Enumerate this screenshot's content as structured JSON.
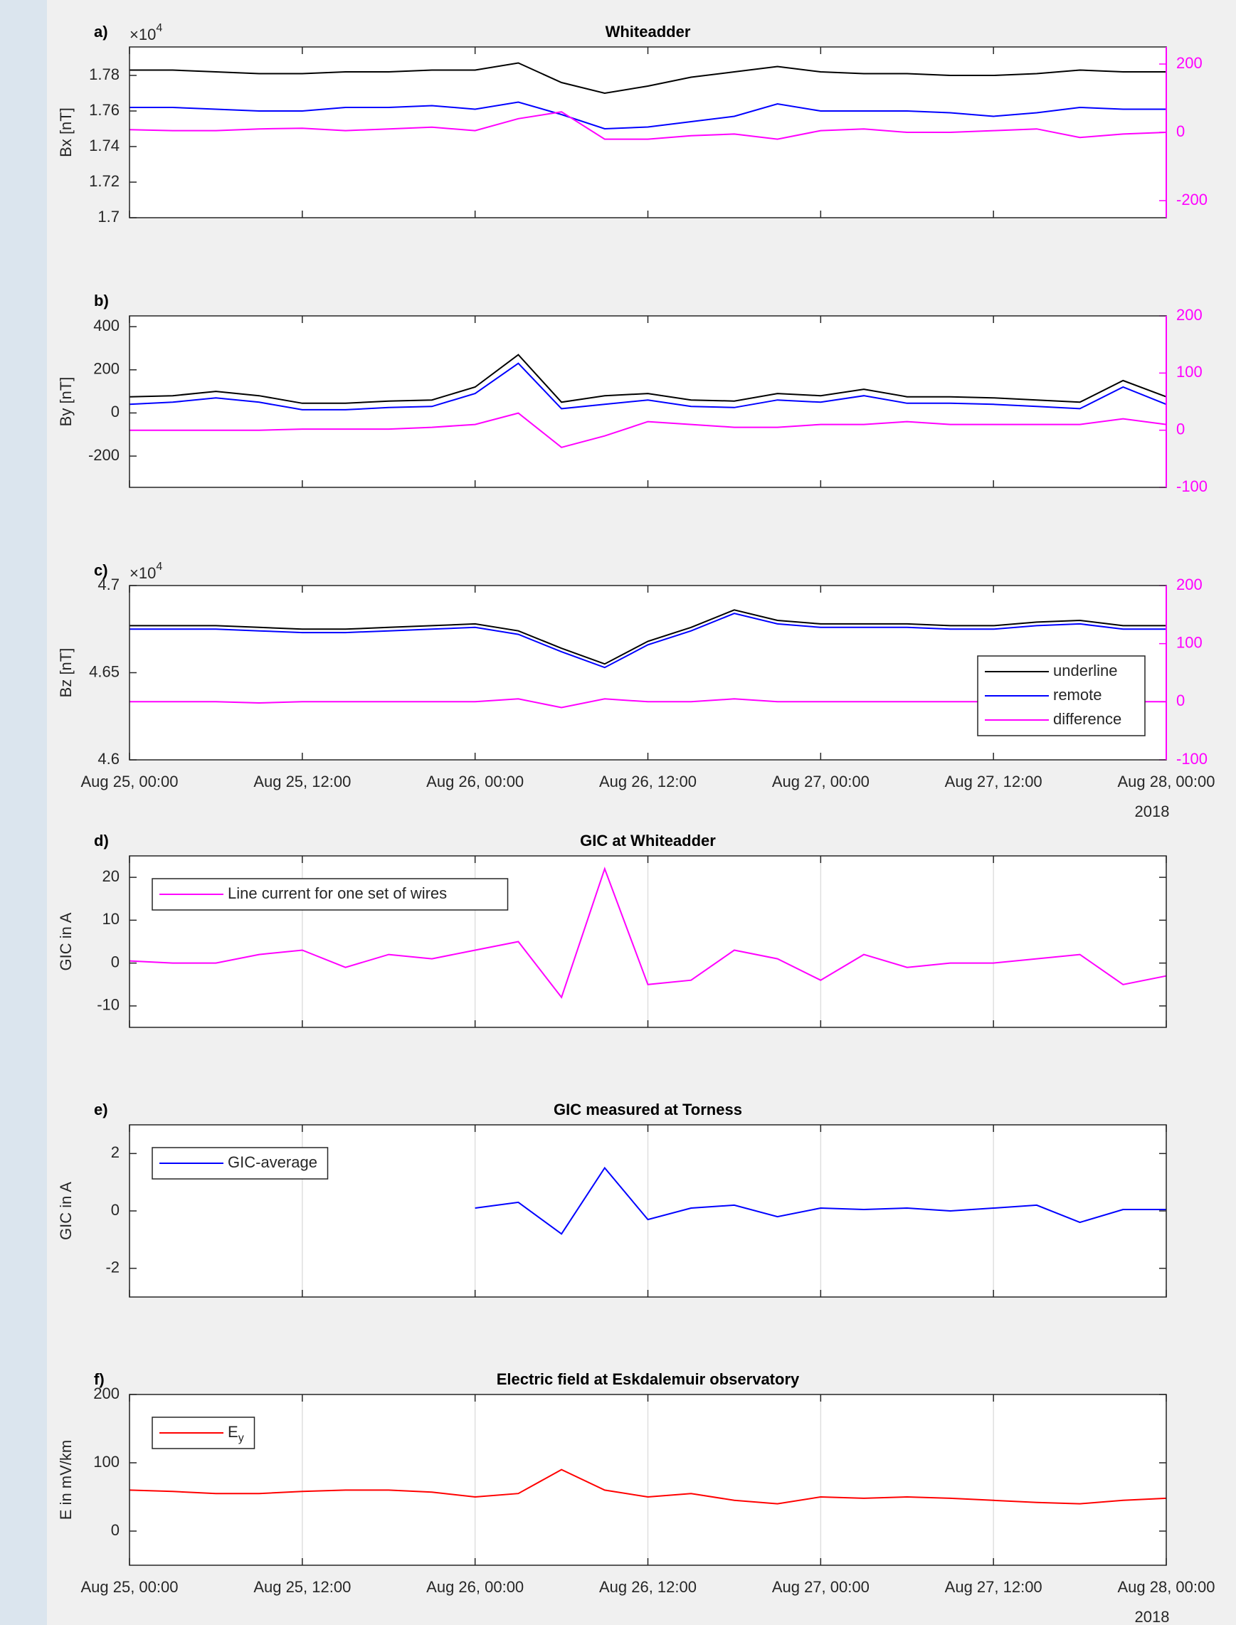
{
  "chart_data": [
    {
      "type": "line",
      "panel_label": "a)",
      "title": "Whiteadder",
      "y_label": "Bx [nT]",
      "y_multiplier": "×10",
      "y_multiplier_exp": "4",
      "x": [
        "2018-08-25T00:00",
        "2018-08-25T03:00",
        "2018-08-25T06:00",
        "2018-08-25T09:00",
        "2018-08-25T12:00",
        "2018-08-25T15:00",
        "2018-08-25T18:00",
        "2018-08-25T21:00",
        "2018-08-26T00:00",
        "2018-08-26T03:00",
        "2018-08-26T06:00",
        "2018-08-26T09:00",
        "2018-08-26T12:00",
        "2018-08-26T15:00",
        "2018-08-26T18:00",
        "2018-08-26T21:00",
        "2018-08-27T00:00",
        "2018-08-27T03:00",
        "2018-08-27T06:00",
        "2018-08-27T09:00",
        "2018-08-27T12:00",
        "2018-08-27T15:00",
        "2018-08-27T18:00",
        "2018-08-27T21:00",
        "2018-08-28T00:00"
      ],
      "xlim": [
        "2018-08-25T00:00",
        "2018-08-28T00:00"
      ],
      "xticks": [
        "2018-08-25T00:00",
        "2018-08-25T12:00",
        "2018-08-26T00:00",
        "2018-08-26T12:00",
        "2018-08-27T00:00",
        "2018-08-27T12:00",
        "2018-08-28T00:00"
      ],
      "ylim": [
        1.7,
        1.796
      ],
      "yticks": [
        1.7,
        1.72,
        1.74,
        1.76,
        1.78
      ],
      "y2lim": [
        -250,
        250
      ],
      "y2ticks": [
        -200,
        0,
        200
      ],
      "y2color": "#ff00ff",
      "series": [
        {
          "name": "underline",
          "color": "#000000",
          "values": [
            1.783,
            1.783,
            1.782,
            1.781,
            1.781,
            1.782,
            1.782,
            1.783,
            1.783,
            1.787,
            1.776,
            1.77,
            1.774,
            1.779,
            1.782,
            1.785,
            1.782,
            1.781,
            1.781,
            1.78,
            1.78,
            1.781,
            1.783,
            1.782,
            1.782
          ]
        },
        {
          "name": "remote",
          "color": "#0000ff",
          "values": [
            1.762,
            1.762,
            1.761,
            1.76,
            1.76,
            1.762,
            1.762,
            1.763,
            1.761,
            1.765,
            1.758,
            1.75,
            1.751,
            1.754,
            1.757,
            1.764,
            1.76,
            1.76,
            1.76,
            1.759,
            1.757,
            1.759,
            1.762,
            1.761,
            1.761
          ]
        },
        {
          "name": "difference",
          "color": "#ff00ff",
          "axis": "y2",
          "values": [
            8,
            5,
            5,
            10,
            12,
            5,
            10,
            15,
            5,
            40,
            60,
            -20,
            -20,
            -10,
            -5,
            -20,
            5,
            10,
            0,
            0,
            5,
            10,
            -15,
            -5,
            0
          ]
        }
      ]
    },
    {
      "type": "line",
      "panel_label": "b)",
      "y_label": "By [nT]",
      "x": [
        "2018-08-25T00:00",
        "2018-08-25T03:00",
        "2018-08-25T06:00",
        "2018-08-25T09:00",
        "2018-08-25T12:00",
        "2018-08-25T15:00",
        "2018-08-25T18:00",
        "2018-08-25T21:00",
        "2018-08-26T00:00",
        "2018-08-26T03:00",
        "2018-08-26T06:00",
        "2018-08-26T09:00",
        "2018-08-26T12:00",
        "2018-08-26T15:00",
        "2018-08-26T18:00",
        "2018-08-26T21:00",
        "2018-08-27T00:00",
        "2018-08-27T03:00",
        "2018-08-27T06:00",
        "2018-08-27T09:00",
        "2018-08-27T12:00",
        "2018-08-27T15:00",
        "2018-08-27T18:00",
        "2018-08-27T21:00",
        "2018-08-28T00:00"
      ],
      "xlim": [
        "2018-08-25T00:00",
        "2018-08-28T00:00"
      ],
      "xticks": [
        "2018-08-25T00:00",
        "2018-08-25T12:00",
        "2018-08-26T00:00",
        "2018-08-26T12:00",
        "2018-08-27T00:00",
        "2018-08-27T12:00",
        "2018-08-28T00:00"
      ],
      "ylim": [
        -345,
        450
      ],
      "yticks": [
        -200,
        0,
        200,
        400
      ],
      "y2lim": [
        -100,
        200
      ],
      "y2ticks": [
        -100,
        0,
        100,
        200
      ],
      "y2color": "#ff00ff",
      "series": [
        {
          "name": "underline",
          "color": "#000000",
          "values": [
            75,
            80,
            100,
            80,
            45,
            45,
            55,
            60,
            120,
            270,
            50,
            80,
            90,
            60,
            55,
            90,
            80,
            110,
            75,
            75,
            70,
            60,
            50,
            150,
            75
          ]
        },
        {
          "name": "remote",
          "color": "#0000ff",
          "values": [
            40,
            50,
            70,
            50,
            15,
            15,
            25,
            30,
            90,
            230,
            20,
            40,
            60,
            30,
            25,
            60,
            50,
            80,
            45,
            45,
            40,
            30,
            20,
            120,
            40
          ]
        },
        {
          "name": "difference",
          "color": "#ff00ff",
          "axis": "y2",
          "values": [
            0,
            0,
            0,
            0,
            2,
            2,
            2,
            5,
            10,
            30,
            -30,
            -10,
            15,
            10,
            5,
            5,
            10,
            10,
            15,
            10,
            10,
            10,
            10,
            20,
            10
          ]
        }
      ]
    },
    {
      "type": "line",
      "panel_label": "c)",
      "y_label": "Bz [nT]",
      "y_multiplier": "×10",
      "y_multiplier_exp": "4",
      "x_note": "2018",
      "legend": "lower right",
      "x": [
        "2018-08-25T00:00",
        "2018-08-25T03:00",
        "2018-08-25T06:00",
        "2018-08-25T09:00",
        "2018-08-25T12:00",
        "2018-08-25T15:00",
        "2018-08-25T18:00",
        "2018-08-25T21:00",
        "2018-08-26T00:00",
        "2018-08-26T03:00",
        "2018-08-26T06:00",
        "2018-08-26T09:00",
        "2018-08-26T12:00",
        "2018-08-26T15:00",
        "2018-08-26T18:00",
        "2018-08-26T21:00",
        "2018-08-27T00:00",
        "2018-08-27T03:00",
        "2018-08-27T06:00",
        "2018-08-27T09:00",
        "2018-08-27T12:00",
        "2018-08-27T15:00",
        "2018-08-27T18:00",
        "2018-08-27T21:00",
        "2018-08-28T00:00"
      ],
      "xlim": [
        "2018-08-25T00:00",
        "2018-08-28T00:00"
      ],
      "xticks": [
        {
          "value": "2018-08-25T00:00",
          "label": "Aug 25, 00:00"
        },
        {
          "value": "2018-08-25T12:00",
          "label": "Aug 25, 12:00"
        },
        {
          "value": "2018-08-26T00:00",
          "label": "Aug 26, 00:00"
        },
        {
          "value": "2018-08-26T12:00",
          "label": "Aug 26, 12:00"
        },
        {
          "value": "2018-08-27T00:00",
          "label": "Aug 27, 00:00"
        },
        {
          "value": "2018-08-27T12:00",
          "label": "Aug 27, 12:00"
        },
        {
          "value": "2018-08-28T00:00",
          "label": "Aug 28, 00:00"
        }
      ],
      "ylim": [
        4.6,
        4.7
      ],
      "yticks": [
        4.6,
        4.65,
        4.7
      ],
      "y2lim": [
        -100,
        200
      ],
      "y2ticks": [
        -100,
        0,
        100,
        200
      ],
      "y2color": "#ff00ff",
      "series": [
        {
          "name": "underline",
          "color": "#000000",
          "values": [
            4.677,
            4.677,
            4.677,
            4.676,
            4.675,
            4.675,
            4.676,
            4.677,
            4.678,
            4.674,
            4.664,
            4.655,
            4.668,
            4.676,
            4.686,
            4.68,
            4.678,
            4.678,
            4.678,
            4.677,
            4.677,
            4.679,
            4.68,
            4.677,
            4.677
          ]
        },
        {
          "name": "remote",
          "color": "#0000ff",
          "values": [
            4.675,
            4.675,
            4.675,
            4.674,
            4.673,
            4.673,
            4.674,
            4.675,
            4.676,
            4.672,
            4.662,
            4.653,
            4.666,
            4.674,
            4.684,
            4.678,
            4.676,
            4.676,
            4.676,
            4.675,
            4.675,
            4.677,
            4.678,
            4.675,
            4.675
          ]
        },
        {
          "name": "difference",
          "color": "#ff00ff",
          "axis": "y2",
          "values": [
            0,
            0,
            0,
            -2,
            0,
            0,
            0,
            0,
            0,
            5,
            -10,
            5,
            0,
            0,
            5,
            0,
            0,
            0,
            0,
            0,
            0,
            0,
            0,
            0,
            0
          ]
        }
      ]
    },
    {
      "type": "line",
      "panel_label": "d)",
      "title": "GIC at Whiteadder",
      "y_label": "GIC in A",
      "legend": "upper left",
      "grid": true,
      "x": [
        "2018-08-25T00:00",
        "2018-08-25T03:00",
        "2018-08-25T06:00",
        "2018-08-25T09:00",
        "2018-08-25T12:00",
        "2018-08-25T15:00",
        "2018-08-25T18:00",
        "2018-08-25T21:00",
        "2018-08-26T00:00",
        "2018-08-26T03:00",
        "2018-08-26T06:00",
        "2018-08-26T09:00",
        "2018-08-26T12:00",
        "2018-08-26T15:00",
        "2018-08-26T18:00",
        "2018-08-26T21:00",
        "2018-08-27T00:00",
        "2018-08-27T03:00",
        "2018-08-27T06:00",
        "2018-08-27T09:00",
        "2018-08-27T12:00",
        "2018-08-27T15:00",
        "2018-08-27T18:00",
        "2018-08-27T21:00",
        "2018-08-28T00:00"
      ],
      "xlim": [
        "2018-08-25T00:00",
        "2018-08-28T00:00"
      ],
      "xticks": [
        "2018-08-25T00:00",
        "2018-08-25T12:00",
        "2018-08-26T00:00",
        "2018-08-26T12:00",
        "2018-08-27T00:00",
        "2018-08-27T12:00",
        "2018-08-28T00:00"
      ],
      "ylim": [
        -15,
        25
      ],
      "yticks": [
        -10,
        0,
        10,
        20
      ],
      "series": [
        {
          "name": "Line current for one set of wires",
          "color": "#ff00ff",
          "values": [
            0.5,
            0,
            0,
            2,
            3,
            -1,
            2,
            1,
            3,
            5,
            -8,
            22,
            -5,
            -4,
            3,
            1,
            -4,
            2,
            -1,
            0,
            0,
            1,
            2,
            -5,
            -3
          ]
        }
      ]
    },
    {
      "type": "line",
      "panel_label": "e)",
      "title": "GIC measured at Torness",
      "y_label": "GIC in A",
      "legend": "upper left",
      "grid": true,
      "x": [
        "2018-08-25T00:00",
        "2018-08-25T03:00",
        "2018-08-25T06:00",
        "2018-08-25T09:00",
        "2018-08-25T12:00",
        "2018-08-25T15:00",
        "2018-08-25T18:00",
        "2018-08-25T21:00",
        "2018-08-26T00:00",
        "2018-08-26T03:00",
        "2018-08-26T06:00",
        "2018-08-26T09:00",
        "2018-08-26T12:00",
        "2018-08-26T15:00",
        "2018-08-26T18:00",
        "2018-08-26T21:00",
        "2018-08-27T00:00",
        "2018-08-27T03:00",
        "2018-08-27T06:00",
        "2018-08-27T09:00",
        "2018-08-27T12:00",
        "2018-08-27T15:00",
        "2018-08-27T18:00",
        "2018-08-27T21:00",
        "2018-08-28T00:00"
      ],
      "xlim": [
        "2018-08-25T00:00",
        "2018-08-28T00:00"
      ],
      "xticks": [
        "2018-08-25T00:00",
        "2018-08-25T12:00",
        "2018-08-26T00:00",
        "2018-08-26T12:00",
        "2018-08-27T00:00",
        "2018-08-27T12:00",
        "2018-08-28T00:00"
      ],
      "ylim": [
        -3,
        3
      ],
      "yticks": [
        -2,
        0,
        2
      ],
      "series": [
        {
          "name": "GIC-average",
          "color": "#0000ff",
          "values": [
            null,
            null,
            null,
            null,
            null,
            null,
            null,
            null,
            0.1,
            0.3,
            -0.8,
            1.5,
            -0.3,
            0.1,
            0.2,
            -0.2,
            0.1,
            0.05,
            0.1,
            0.0,
            0.1,
            0.2,
            -0.4,
            0.05,
            0.05
          ]
        }
      ]
    },
    {
      "type": "line",
      "panel_label": "f)",
      "title": "Electric field at Eskdalemuir observatory",
      "y_label": "E in mV/km",
      "legend": "upper left",
      "grid": true,
      "x_note": "2018",
      "x": [
        "2018-08-25T00:00",
        "2018-08-25T03:00",
        "2018-08-25T06:00",
        "2018-08-25T09:00",
        "2018-08-25T12:00",
        "2018-08-25T15:00",
        "2018-08-25T18:00",
        "2018-08-25T21:00",
        "2018-08-26T00:00",
        "2018-08-26T03:00",
        "2018-08-26T06:00",
        "2018-08-26T09:00",
        "2018-08-26T12:00",
        "2018-08-26T15:00",
        "2018-08-26T18:00",
        "2018-08-26T21:00",
        "2018-08-27T00:00",
        "2018-08-27T03:00",
        "2018-08-27T06:00",
        "2018-08-27T09:00",
        "2018-08-27T12:00",
        "2018-08-27T15:00",
        "2018-08-27T18:00",
        "2018-08-27T21:00",
        "2018-08-28T00:00"
      ],
      "xlim": [
        "2018-08-25T00:00",
        "2018-08-28T00:00"
      ],
      "xticks": [
        {
          "value": "2018-08-25T00:00",
          "label": "Aug 25, 00:00"
        },
        {
          "value": "2018-08-25T12:00",
          "label": "Aug 25, 12:00"
        },
        {
          "value": "2018-08-26T00:00",
          "label": "Aug 26, 00:00"
        },
        {
          "value": "2018-08-26T12:00",
          "label": "Aug 26, 12:00"
        },
        {
          "value": "2018-08-27T00:00",
          "label": "Aug 27, 00:00"
        },
        {
          "value": "2018-08-27T12:00",
          "label": "Aug 27, 12:00"
        },
        {
          "value": "2018-08-28T00:00",
          "label": "Aug 28, 00:00"
        }
      ],
      "ylim": [
        -50,
        200
      ],
      "yticks": [
        0,
        100,
        200
      ],
      "series": [
        {
          "name": "E",
          "name_sub": "y",
          "color": "#ff0000",
          "values": [
            60,
            58,
            55,
            55,
            58,
            60,
            60,
            57,
            50,
            55,
            90,
            60,
            50,
            55,
            45,
            40,
            50,
            48,
            50,
            48,
            45,
            42,
            40,
            45,
            48
          ]
        }
      ]
    }
  ]
}
